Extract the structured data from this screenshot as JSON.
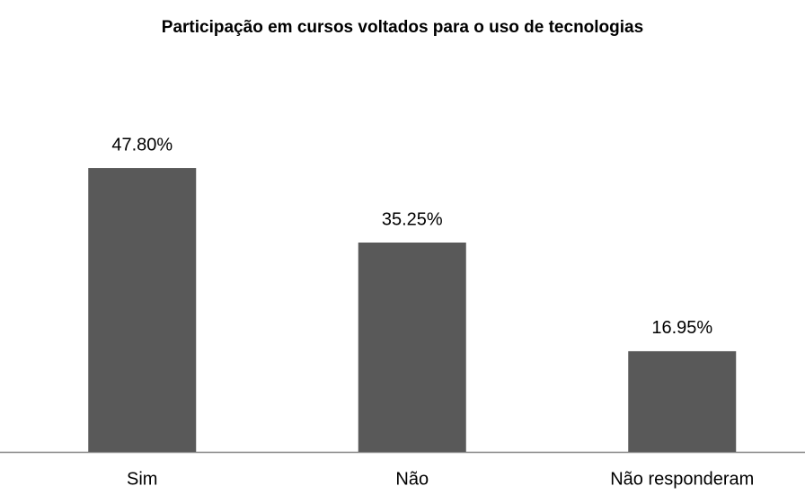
{
  "chart_data": {
    "type": "bar",
    "title": "Participação em cursos voltados para o uso de tecnologias",
    "categories": [
      "Sim",
      "Não",
      "Não responderam"
    ],
    "values": [
      47.8,
      35.25,
      16.95
    ],
    "value_labels": [
      "47.80%",
      "35.25%",
      "16.95%"
    ],
    "color": "#595959"
  }
}
